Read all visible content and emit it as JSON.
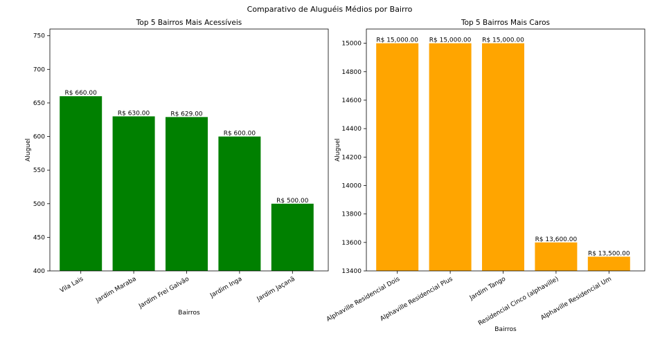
{
  "figure": {
    "suptitle": "Comparativo de Aluguéis Médios por Bairro"
  },
  "chart_data": [
    {
      "type": "bar",
      "title": "Top 5 Bairros Mais Acessíveis",
      "xlabel": "Bairros",
      "ylabel": "Aluguel",
      "categories": [
        "Vila Lais",
        "Jardim Maraba",
        "Jardim Frei Galvão",
        "Jardim Inga",
        "Jardim Jaçanã"
      ],
      "values": [
        660,
        630,
        629,
        600,
        500
      ],
      "value_labels": [
        "R$ 660.00",
        "R$ 630.00",
        "R$ 629.00",
        "R$ 600.00",
        "R$ 500.00"
      ],
      "ylim": [
        400,
        760
      ],
      "yticks": [
        400,
        450,
        500,
        550,
        600,
        650,
        700,
        750
      ],
      "color": "#008000",
      "grid": false
    },
    {
      "type": "bar",
      "title": "Top 5 Bairros Mais Caros",
      "xlabel": "Bairros",
      "ylabel": "Aluguel",
      "categories": [
        "Alphaville Residencial Dois",
        "Alphaville Residencial Plus",
        "Jardim Tango",
        "Residencial Cinco (alphaville)",
        "Alphaville Residencial Um"
      ],
      "values": [
        15000,
        15000,
        15000,
        13600,
        13500
      ],
      "value_labels": [
        "R$ 15,000.00",
        "R$ 15,000.00",
        "R$ 15,000.00",
        "R$ 13,600.00",
        "R$ 13,500.00"
      ],
      "ylim": [
        13400,
        15100
      ],
      "yticks": [
        13400,
        13600,
        13800,
        14000,
        14200,
        14400,
        14600,
        14800,
        15000
      ],
      "color": "#FFA500",
      "grid": false
    }
  ]
}
